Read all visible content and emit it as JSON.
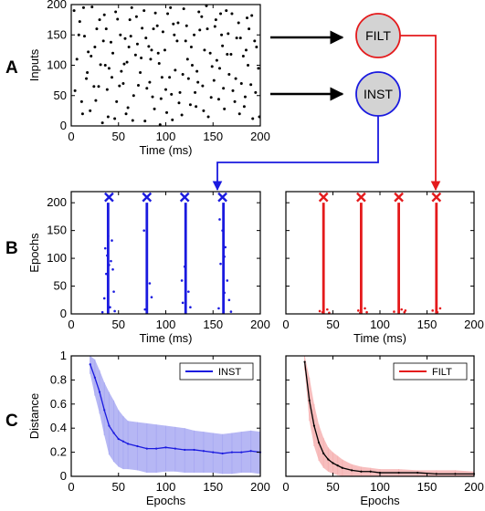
{
  "panel_letters": [
    "A",
    "B",
    "C"
  ],
  "nodes": {
    "filt_label": "FILT",
    "inst_label": "INST"
  },
  "colors": {
    "inst": "#1a1adf",
    "filt": "#e41a1c",
    "inst_band": "#a9aaf2",
    "filt_band": "#f6b3b3",
    "node_fill": "#d3d3d3"
  },
  "chart_data": [
    {
      "id": "inputs_raster",
      "type": "scatter",
      "xlabel": "Time (ms)",
      "ylabel": "Inputs",
      "xlim": [
        0,
        200
      ],
      "ylim": [
        0,
        200
      ],
      "xticks": [
        0,
        50,
        100,
        150,
        200
      ],
      "yticks": [
        0,
        50,
        100,
        150,
        200
      ],
      "series": [
        {
          "color": "#000000",
          "points": [
            [
              3,
              190
            ],
            [
              9,
              172
            ],
            [
              14,
              148
            ],
            [
              18,
              122
            ],
            [
              22,
              196
            ],
            [
              27,
              160
            ],
            [
              31,
              101
            ],
            [
              35,
              183
            ],
            [
              38,
              60
            ],
            [
              42,
              138
            ],
            [
              46,
              12
            ],
            [
              49,
              176
            ],
            [
              53,
              90
            ],
            [
              57,
              144
            ],
            [
              60,
              30
            ],
            [
              64,
              195
            ],
            [
              68,
              117
            ],
            [
              71,
              67
            ],
            [
              75,
              161
            ],
            [
              78,
              8
            ],
            [
              82,
              131
            ],
            [
              86,
              48
            ],
            [
              89,
              186
            ],
            [
              93,
              103
            ],
            [
              97,
              155
            ],
            [
              101,
              22
            ],
            [
              104,
              80
            ],
            [
              108,
              168
            ],
            [
              112,
              140
            ],
            [
              115,
              55
            ],
            [
              119,
              193
            ],
            [
              123,
              110
            ],
            [
              126,
              35
            ],
            [
              130,
              150
            ],
            [
              134,
              72
            ],
            [
              138,
              180
            ],
            [
              141,
              125
            ],
            [
              145,
              15
            ],
            [
              149,
              98
            ],
            [
              152,
              164
            ],
            [
              156,
              44
            ],
            [
              160,
              132
            ],
            [
              164,
              190
            ],
            [
              167,
              85
            ],
            [
              171,
              58
            ],
            [
              175,
              145
            ],
            [
              178,
              20
            ],
            [
              182,
              115
            ],
            [
              186,
              178
            ],
            [
              190,
              68
            ],
            [
              194,
              140
            ],
            [
              198,
              95
            ],
            [
              6,
              110
            ],
            [
              11,
              40
            ],
            [
              16,
              78
            ],
            [
              20,
              25
            ],
            [
              25,
              130
            ],
            [
              29,
              65
            ],
            [
              33,
              5
            ],
            [
              37,
              160
            ],
            [
              40,
              95
            ],
            [
              44,
              120
            ],
            [
              48,
              40
            ],
            [
              52,
              150
            ],
            [
              55,
              70
            ],
            [
              59,
              105
            ],
            [
              62,
              175
            ],
            [
              66,
              50
            ],
            [
              70,
              135
            ],
            [
              73,
              88
            ],
            [
              77,
              190
            ],
            [
              80,
              62
            ],
            [
              84,
              110
            ],
            [
              88,
              28
            ],
            [
              91,
              165
            ],
            [
              95,
              45
            ],
            [
              99,
              125
            ],
            [
              102,
              185
            ],
            [
              106,
              52
            ],
            [
              110,
              92
            ],
            [
              113,
              170
            ],
            [
              117,
              18
            ],
            [
              121,
              140
            ],
            [
              124,
              78
            ],
            [
              128,
              100
            ],
            [
              132,
              32
            ],
            [
              136,
              158
            ],
            [
              139,
              66
            ],
            [
              143,
              198
            ],
            [
              147,
              120
            ],
            [
              151,
              75
            ],
            [
              154,
              108
            ],
            [
              158,
              185
            ],
            [
              162,
              28
            ],
            [
              166,
              152
            ],
            [
              169,
              118
            ],
            [
              173,
              40
            ],
            [
              177,
              170
            ],
            [
              180,
              70
            ],
            [
              184,
              48
            ],
            [
              188,
              160
            ],
            [
              192,
              12
            ],
            [
              196,
              130
            ],
            [
              4,
              58
            ],
            [
              8,
              150
            ],
            [
              13,
              195
            ],
            [
              17,
              88
            ],
            [
              21,
              115
            ],
            [
              26,
              42
            ],
            [
              30,
              175
            ],
            [
              34,
              140
            ],
            [
              39,
              15
            ],
            [
              43,
              80
            ],
            [
              47,
              188
            ],
            [
              51,
              66
            ],
            [
              56,
              102
            ],
            [
              61,
              130
            ],
            [
              65,
              9
            ],
            [
              69,
              180
            ],
            [
              74,
              112
            ],
            [
              79,
              145
            ],
            [
              83,
              72
            ],
            [
              87,
              160
            ],
            [
              92,
              120
            ],
            [
              96,
              80
            ],
            [
              100,
              60
            ],
            [
              105,
              195
            ],
            [
              109,
              150
            ],
            [
              114,
              38
            ],
            [
              118,
              85
            ],
            [
              122,
              165
            ],
            [
              127,
              130
            ],
            [
              131,
              55
            ],
            [
              135,
              188
            ],
            [
              140,
              25
            ],
            [
              144,
              160
            ],
            [
              148,
              47
            ],
            [
              153,
              175
            ],
            [
              157,
              95
            ],
            [
              161,
              62
            ],
            [
              165,
              118
            ],
            [
              170,
              185
            ],
            [
              174,
              78
            ],
            [
              179,
              145
            ],
            [
              183,
              32
            ],
            [
              187,
              100
            ],
            [
              191,
              182
            ],
            [
              195,
              55
            ],
            [
              199,
              15
            ],
            [
              24,
              65
            ],
            [
              58,
              20
            ],
            [
              85,
              125
            ],
            [
              107,
              10
            ],
            [
              133,
              90
            ],
            [
              159,
              150
            ],
            [
              185,
              125
            ],
            [
              12,
              20
            ],
            [
              36,
              100
            ],
            [
              63,
              148
            ],
            [
              94,
              2
            ]
          ]
        }
      ]
    },
    {
      "id": "inst_epochs_raster",
      "type": "scatter",
      "xlabel": "Time (ms)",
      "ylabel": "Epochs",
      "xlim": [
        0,
        200
      ],
      "ylim": [
        0,
        220
      ],
      "xticks": [
        0,
        50,
        100,
        150,
        200
      ],
      "yticks": [
        0,
        50,
        100,
        150,
        200
      ],
      "targets_x": [
        40,
        80,
        120,
        160
      ],
      "target_marker_y": 210,
      "line_x": [
        39,
        80,
        121,
        161
      ],
      "line_top": 200,
      "color": "#1a1adf",
      "scatter_points": [
        [
          36,
          118
        ],
        [
          38,
          105
        ],
        [
          42,
          95
        ],
        [
          44,
          80
        ],
        [
          37,
          72
        ],
        [
          40,
          88
        ],
        [
          43,
          132
        ],
        [
          35,
          28
        ],
        [
          45,
          40
        ],
        [
          41,
          12
        ],
        [
          46,
          5
        ],
        [
          33,
          3
        ],
        [
          77,
          150
        ],
        [
          83,
          55
        ],
        [
          85,
          30
        ],
        [
          78,
          8
        ],
        [
          120,
          85
        ],
        [
          117,
          60
        ],
        [
          124,
          40
        ],
        [
          118,
          20
        ],
        [
          126,
          12
        ],
        [
          160,
          150
        ],
        [
          163,
          120
        ],
        [
          158,
          90
        ],
        [
          165,
          60
        ],
        [
          162,
          38
        ],
        [
          167,
          25
        ],
        [
          156,
          10
        ],
        [
          169,
          4
        ],
        [
          39,
          140
        ],
        [
          162,
          103
        ],
        [
          157,
          170
        ]
      ]
    },
    {
      "id": "filt_epochs_raster",
      "type": "scatter",
      "xlabel": "Time (ms)",
      "ylabel": "",
      "xlim": [
        0,
        200
      ],
      "ylim": [
        0,
        220
      ],
      "xticks": [
        0,
        50,
        100,
        150,
        200
      ],
      "yticks": [
        0,
        50,
        100,
        150,
        200
      ],
      "targets_x": [
        40,
        80,
        120,
        160
      ],
      "target_marker_y": 210,
      "line_x": [
        40,
        80,
        120,
        160
      ],
      "line_top": 200,
      "color": "#e41a1c",
      "scatter_points": [
        [
          36,
          5
        ],
        [
          44,
          8
        ],
        [
          39,
          3
        ],
        [
          77,
          6
        ],
        [
          84,
          10
        ],
        [
          79,
          2
        ],
        [
          115,
          4
        ],
        [
          123,
          8
        ],
        [
          126,
          3
        ],
        [
          156,
          6
        ],
        [
          164,
          10
        ],
        [
          161,
          3
        ],
        [
          46,
          2
        ],
        [
          127,
          6
        ],
        [
          86,
          3
        ]
      ]
    },
    {
      "id": "inst_distance",
      "type": "line",
      "xlabel": "Epochs",
      "ylabel": "Distance",
      "xlim": [
        0,
        200
      ],
      "ylim": [
        0,
        1
      ],
      "xticks": [
        0,
        50,
        100,
        150,
        200
      ],
      "yticks": [
        0,
        0.2,
        0.4,
        0.6,
        0.8,
        1
      ],
      "legend": "INST",
      "legend_position": "top-right",
      "x": [
        20,
        25,
        30,
        35,
        40,
        45,
        50,
        55,
        60,
        70,
        80,
        90,
        100,
        110,
        120,
        130,
        140,
        150,
        160,
        170,
        180,
        190,
        200
      ],
      "mean": [
        0.93,
        0.82,
        0.7,
        0.55,
        0.42,
        0.36,
        0.31,
        0.29,
        0.27,
        0.25,
        0.23,
        0.23,
        0.24,
        0.23,
        0.22,
        0.22,
        0.21,
        0.2,
        0.19,
        0.2,
        0.2,
        0.21,
        0.2
      ],
      "upper": [
        1.0,
        0.97,
        0.88,
        0.78,
        0.7,
        0.63,
        0.55,
        0.5,
        0.46,
        0.45,
        0.44,
        0.43,
        0.42,
        0.41,
        0.4,
        0.38,
        0.37,
        0.36,
        0.35,
        0.36,
        0.37,
        0.38,
        0.37
      ],
      "lower": [
        0.85,
        0.67,
        0.52,
        0.34,
        0.18,
        0.12,
        0.08,
        0.06,
        0.06,
        0.05,
        0.03,
        0.03,
        0.04,
        0.04,
        0.03,
        0.03,
        0.03,
        0.03,
        0.02,
        0.02,
        0.03,
        0.03,
        0.02
      ],
      "color": "#1a1adf",
      "band_color": "#a9aaf2"
    },
    {
      "id": "filt_distance",
      "type": "line",
      "xlabel": "Epochs",
      "ylabel": "",
      "xlim": [
        0,
        200
      ],
      "ylim": [
        0,
        1
      ],
      "xticks": [
        0,
        50,
        100,
        150,
        200
      ],
      "yticks": [
        0,
        0.2,
        0.4,
        0.6,
        0.8,
        1
      ],
      "legend": "FILT",
      "legend_position": "top-right",
      "x": [
        20,
        25,
        30,
        35,
        40,
        45,
        50,
        55,
        60,
        70,
        80,
        90,
        100,
        120,
        140,
        160,
        180,
        200
      ],
      "mean": [
        0.95,
        0.63,
        0.42,
        0.28,
        0.19,
        0.14,
        0.11,
        0.09,
        0.07,
        0.05,
        0.04,
        0.04,
        0.03,
        0.03,
        0.03,
        0.02,
        0.02,
        0.02
      ],
      "upper": [
        1.0,
        0.82,
        0.6,
        0.43,
        0.32,
        0.24,
        0.2,
        0.17,
        0.14,
        0.1,
        0.08,
        0.07,
        0.06,
        0.06,
        0.05,
        0.05,
        0.05,
        0.04
      ],
      "lower": [
        0.88,
        0.46,
        0.25,
        0.13,
        0.07,
        0.04,
        0.02,
        0.01,
        0.0,
        0.0,
        0.0,
        0.0,
        0.0,
        0.0,
        0.0,
        0.0,
        0.0,
        0.0
      ],
      "color": "#000000",
      "band_color": "#f6b3b3"
    }
  ]
}
